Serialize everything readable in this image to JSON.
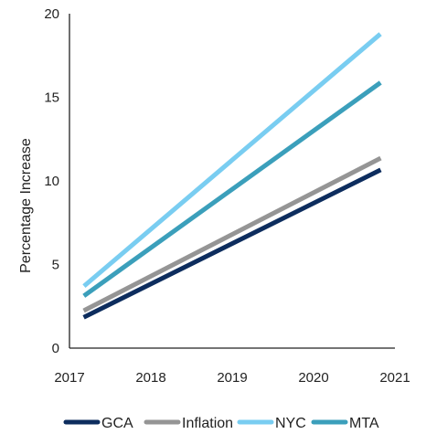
{
  "chart_data": {
    "type": "line",
    "title": "",
    "xlabel": "",
    "ylabel": "Percentage Increase",
    "xlim": [
      2017,
      2021
    ],
    "ylim": [
      0,
      20
    ],
    "xticks": [
      "2017",
      "2018",
      "2019",
      "2020",
      "2021"
    ],
    "yticks": [
      "0",
      "5",
      "10",
      "15",
      "20"
    ],
    "grid": false,
    "legend": "bottom",
    "series": [
      {
        "name": "GCA",
        "color": "#0d2d5e",
        "x": [
          2017.2,
          2020.8
        ],
        "y": [
          1.9,
          10.6
        ]
      },
      {
        "name": "Inflation",
        "color": "#959595",
        "x": [
          2017.2,
          2020.8
        ],
        "y": [
          2.3,
          11.3
        ]
      },
      {
        "name": "NYC",
        "color": "#79cdf1",
        "x": [
          2017.2,
          2020.8
        ],
        "y": [
          3.8,
          18.7
        ]
      },
      {
        "name": "MTA",
        "color": "#3b9fbb",
        "x": [
          2017.2,
          2020.8
        ],
        "y": [
          3.2,
          15.8
        ]
      }
    ]
  }
}
